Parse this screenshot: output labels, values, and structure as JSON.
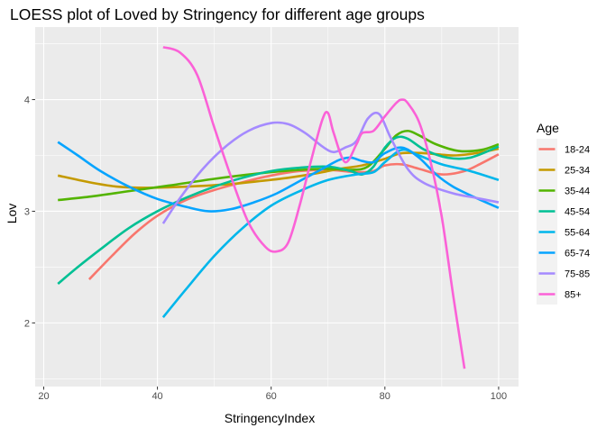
{
  "chart_data": {
    "type": "line",
    "title": "LOESS plot of Loved by Stringency for different age groups",
    "xlabel": "StringencyIndex",
    "ylabel": "Lov",
    "xlim": [
      18.5,
      103.5
    ],
    "ylim": [
      1.43,
      4.65
    ],
    "xticks": [
      20,
      40,
      60,
      80,
      100
    ],
    "yticks": [
      2,
      3,
      4
    ],
    "grid": true,
    "legend_title": "Age",
    "legend_position": "right",
    "series": [
      {
        "name": "18-24",
        "color": "#F8766D",
        "points": [
          [
            28,
            2.39
          ],
          [
            32,
            2.6
          ],
          [
            36,
            2.8
          ],
          [
            40,
            2.96
          ],
          [
            45,
            3.1
          ],
          [
            50,
            3.19
          ],
          [
            55,
            3.26
          ],
          [
            60,
            3.32
          ],
          [
            65,
            3.36
          ],
          [
            70,
            3.37
          ],
          [
            75,
            3.35
          ],
          [
            78,
            3.36
          ],
          [
            80,
            3.41
          ],
          [
            83,
            3.42
          ],
          [
            86,
            3.38
          ],
          [
            90,
            3.33
          ],
          [
            94,
            3.36
          ],
          [
            97,
            3.43
          ],
          [
            100,
            3.51
          ]
        ]
      },
      {
        "name": "25-34",
        "color": "#C49A00",
        "points": [
          [
            22.5,
            3.32
          ],
          [
            28,
            3.26
          ],
          [
            33,
            3.22
          ],
          [
            38,
            3.21
          ],
          [
            45,
            3.22
          ],
          [
            52,
            3.24
          ],
          [
            58,
            3.27
          ],
          [
            63,
            3.3
          ],
          [
            68,
            3.34
          ],
          [
            72,
            3.38
          ],
          [
            76,
            3.41
          ],
          [
            80,
            3.47
          ],
          [
            83,
            3.52
          ],
          [
            87,
            3.52
          ],
          [
            92,
            3.5
          ],
          [
            96,
            3.52
          ],
          [
            100,
            3.56
          ]
        ]
      },
      {
        "name": "35-44",
        "color": "#53B400",
        "points": [
          [
            22.5,
            3.1
          ],
          [
            28,
            3.13
          ],
          [
            35,
            3.18
          ],
          [
            42,
            3.23
          ],
          [
            50,
            3.29
          ],
          [
            58,
            3.34
          ],
          [
            65,
            3.37
          ],
          [
            70,
            3.38
          ],
          [
            74,
            3.37
          ],
          [
            77,
            3.4
          ],
          [
            80,
            3.56
          ],
          [
            82,
            3.68
          ],
          [
            84,
            3.72
          ],
          [
            86,
            3.68
          ],
          [
            89,
            3.6
          ],
          [
            93,
            3.54
          ],
          [
            97,
            3.55
          ],
          [
            100,
            3.6
          ]
        ]
      },
      {
        "name": "45-54",
        "color": "#00C094",
        "points": [
          [
            22.5,
            2.35
          ],
          [
            26,
            2.5
          ],
          [
            30,
            2.66
          ],
          [
            35,
            2.85
          ],
          [
            40,
            3.0
          ],
          [
            45,
            3.12
          ],
          [
            50,
            3.22
          ],
          [
            55,
            3.3
          ],
          [
            60,
            3.36
          ],
          [
            65,
            3.39
          ],
          [
            70,
            3.4
          ],
          [
            74,
            3.36
          ],
          [
            76,
            3.33
          ],
          [
            78,
            3.4
          ],
          [
            80,
            3.57
          ],
          [
            82,
            3.66
          ],
          [
            84,
            3.65
          ],
          [
            87,
            3.55
          ],
          [
            91,
            3.48
          ],
          [
            95,
            3.48
          ],
          [
            100,
            3.58
          ]
        ]
      },
      {
        "name": "55-64",
        "color": "#00B6EB",
        "points": [
          [
            41,
            2.05
          ],
          [
            45,
            2.3
          ],
          [
            50,
            2.6
          ],
          [
            55,
            2.85
          ],
          [
            60,
            3.05
          ],
          [
            65,
            3.18
          ],
          [
            70,
            3.28
          ],
          [
            75,
            3.33
          ],
          [
            78,
            3.35
          ],
          [
            80,
            3.44
          ],
          [
            83,
            3.55
          ],
          [
            86,
            3.5
          ],
          [
            90,
            3.42
          ],
          [
            95,
            3.36
          ],
          [
            100,
            3.28
          ]
        ]
      },
      {
        "name": "65-74",
        "color": "#06A4FF",
        "points": [
          [
            22.5,
            3.62
          ],
          [
            26,
            3.5
          ],
          [
            30,
            3.36
          ],
          [
            35,
            3.22
          ],
          [
            40,
            3.11
          ],
          [
            45,
            3.04
          ],
          [
            49,
            3.0
          ],
          [
            53,
            3.02
          ],
          [
            57,
            3.08
          ],
          [
            61,
            3.16
          ],
          [
            65,
            3.27
          ],
          [
            69,
            3.38
          ],
          [
            72,
            3.46
          ],
          [
            74,
            3.48
          ],
          [
            76,
            3.45
          ],
          [
            78,
            3.44
          ],
          [
            80,
            3.52
          ],
          [
            83,
            3.57
          ],
          [
            86,
            3.48
          ],
          [
            89,
            3.33
          ],
          [
            92,
            3.22
          ],
          [
            96,
            3.12
          ],
          [
            100,
            3.03
          ]
        ]
      },
      {
        "name": "75-85",
        "color": "#A58AFF",
        "points": [
          [
            41,
            2.89
          ],
          [
            44,
            3.12
          ],
          [
            48,
            3.38
          ],
          [
            52,
            3.58
          ],
          [
            56,
            3.72
          ],
          [
            60,
            3.79
          ],
          [
            63,
            3.78
          ],
          [
            66,
            3.7
          ],
          [
            69,
            3.58
          ],
          [
            71,
            3.53
          ],
          [
            73,
            3.57
          ],
          [
            75,
            3.63
          ],
          [
            77,
            3.83
          ],
          [
            79,
            3.87
          ],
          [
            81,
            3.66
          ],
          [
            84,
            3.38
          ],
          [
            87,
            3.25
          ],
          [
            92,
            3.16
          ],
          [
            96,
            3.12
          ],
          [
            100,
            3.08
          ]
        ]
      },
      {
        "name": "85+",
        "color": "#FB61D7",
        "points": [
          [
            41,
            4.47
          ],
          [
            44,
            4.42
          ],
          [
            47,
            4.22
          ],
          [
            50,
            3.75
          ],
          [
            53,
            3.3
          ],
          [
            56,
            2.9
          ],
          [
            59,
            2.68
          ],
          [
            61,
            2.64
          ],
          [
            63,
            2.72
          ],
          [
            65,
            3.05
          ],
          [
            67,
            3.45
          ],
          [
            69,
            3.82
          ],
          [
            70,
            3.88
          ],
          [
            71,
            3.7
          ],
          [
            73,
            3.44
          ],
          [
            75,
            3.6
          ],
          [
            76,
            3.7
          ],
          [
            78,
            3.72
          ],
          [
            80,
            3.85
          ],
          [
            82,
            3.97
          ],
          [
            83,
            4.0
          ],
          [
            84,
            3.97
          ],
          [
            86,
            3.8
          ],
          [
            88,
            3.45
          ],
          [
            90,
            2.95
          ],
          [
            92,
            2.25
          ],
          [
            94,
            1.59
          ]
        ]
      }
    ]
  }
}
